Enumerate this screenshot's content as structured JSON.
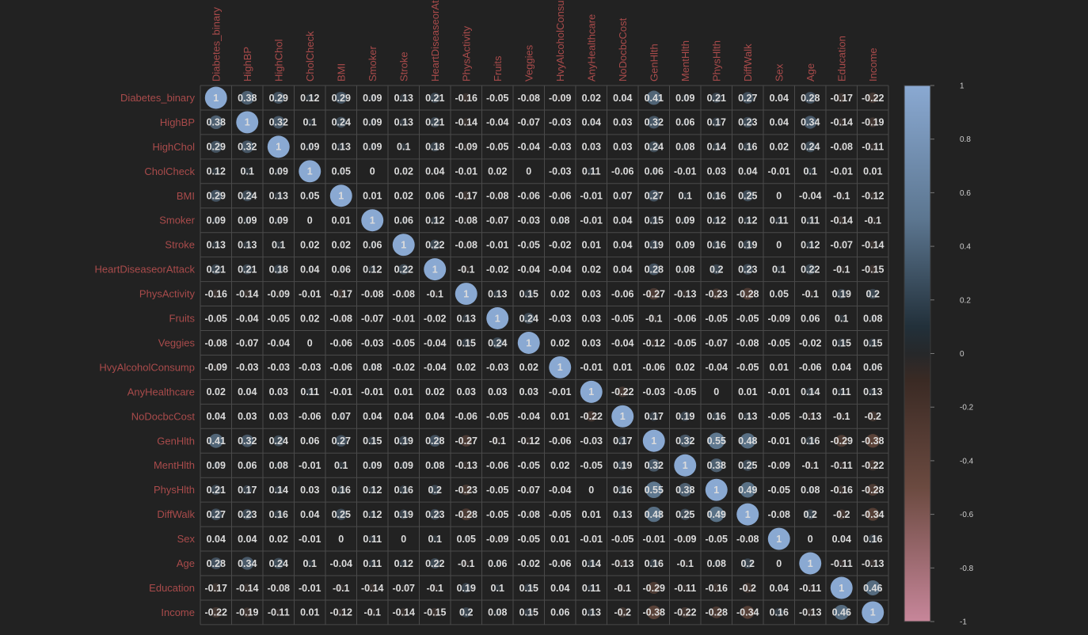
{
  "chart_data": {
    "type": "heatmap",
    "subtype": "correlation-matrix-circles",
    "variables": [
      "Diabetes_binary",
      "HighBP",
      "HighChol",
      "CholCheck",
      "BMI",
      "Smoker",
      "Stroke",
      "HeartDiseaseorAttack",
      "PhysActivity",
      "Fruits",
      "Veggies",
      "HvyAlcoholConsump",
      "AnyHealthcare",
      "NoDocbcCost",
      "GenHlth",
      "MentHlth",
      "PhysHlth",
      "DiffWalk",
      "Sex",
      "Age",
      "Education",
      "Income"
    ],
    "matrix": [
      [
        1,
        0.38,
        0.29,
        0.12,
        0.29,
        0.09,
        0.13,
        0.21,
        -0.16,
        -0.05,
        -0.08,
        -0.09,
        0.02,
        0.04,
        0.41,
        0.09,
        0.21,
        0.27,
        0.04,
        0.28,
        -0.17,
        -0.22
      ],
      [
        0.38,
        1,
        0.32,
        0.1,
        0.24,
        0.09,
        0.13,
        0.21,
        -0.14,
        -0.04,
        -0.07,
        -0.03,
        0.04,
        0.03,
        0.32,
        0.06,
        0.17,
        0.23,
        0.04,
        0.34,
        -0.14,
        -0.19
      ],
      [
        0.29,
        0.32,
        1,
        0.09,
        0.13,
        0.09,
        0.1,
        0.18,
        -0.09,
        -0.05,
        -0.04,
        -0.03,
        0.03,
        0.03,
        0.24,
        0.08,
        0.14,
        0.16,
        0.02,
        0.24,
        -0.08,
        -0.11
      ],
      [
        0.12,
        0.1,
        0.09,
        1,
        0.05,
        0,
        0.02,
        0.04,
        -0.01,
        0.02,
        0,
        -0.03,
        0.11,
        -0.06,
        0.06,
        -0.01,
        0.03,
        0.04,
        -0.01,
        0.1,
        -0.01,
        0.01
      ],
      [
        0.29,
        0.24,
        0.13,
        0.05,
        1,
        0.01,
        0.02,
        0.06,
        -0.17,
        -0.08,
        -0.06,
        -0.06,
        -0.01,
        0.07,
        0.27,
        0.1,
        0.16,
        0.25,
        0,
        -0.04,
        -0.1,
        -0.12
      ],
      [
        0.09,
        0.09,
        0.09,
        0,
        0.01,
        1,
        0.06,
        0.12,
        -0.08,
        -0.07,
        -0.03,
        0.08,
        -0.01,
        0.04,
        0.15,
        0.09,
        0.12,
        0.12,
        0.11,
        0.11,
        -0.14,
        -0.1
      ],
      [
        0.13,
        0.13,
        0.1,
        0.02,
        0.02,
        0.06,
        1,
        0.22,
        -0.08,
        -0.01,
        -0.05,
        -0.02,
        0.01,
        0.04,
        0.19,
        0.09,
        0.16,
        0.19,
        0,
        0.12,
        -0.07,
        -0.14
      ],
      [
        0.21,
        0.21,
        0.18,
        0.04,
        0.06,
        0.12,
        0.22,
        1,
        -0.1,
        -0.02,
        -0.04,
        -0.04,
        0.02,
        0.04,
        0.28,
        0.08,
        0.2,
        0.23,
        0.1,
        0.22,
        -0.1,
        -0.15
      ],
      [
        -0.16,
        -0.14,
        -0.09,
        -0.01,
        -0.17,
        -0.08,
        -0.08,
        -0.1,
        1,
        0.13,
        0.15,
        0.02,
        0.03,
        -0.06,
        -0.27,
        -0.13,
        -0.23,
        -0.28,
        0.05,
        -0.1,
        0.19,
        0.2
      ],
      [
        -0.05,
        -0.04,
        -0.05,
        0.02,
        -0.08,
        -0.07,
        -0.01,
        -0.02,
        0.13,
        1,
        0.24,
        -0.03,
        0.03,
        -0.05,
        -0.1,
        -0.06,
        -0.05,
        -0.05,
        -0.09,
        0.06,
        0.1,
        0.08
      ],
      [
        -0.08,
        -0.07,
        -0.04,
        0,
        -0.06,
        -0.03,
        -0.05,
        -0.04,
        0.15,
        0.24,
        1,
        0.02,
        0.03,
        -0.04,
        -0.12,
        -0.05,
        -0.07,
        -0.08,
        -0.05,
        -0.02,
        0.15,
        0.15
      ],
      [
        -0.09,
        -0.03,
        -0.03,
        -0.03,
        -0.06,
        0.08,
        -0.02,
        -0.04,
        0.02,
        -0.03,
        0.02,
        1,
        -0.01,
        0.01,
        -0.06,
        0.02,
        -0.04,
        -0.05,
        0.01,
        -0.06,
        0.04,
        0.06
      ],
      [
        0.02,
        0.04,
        0.03,
        0.11,
        -0.01,
        -0.01,
        0.01,
        0.02,
        0.03,
        0.03,
        0.03,
        -0.01,
        1,
        -0.22,
        -0.03,
        -0.05,
        0,
        0.01,
        -0.01,
        0.14,
        0.11,
        0.13
      ],
      [
        0.04,
        0.03,
        0.03,
        -0.06,
        0.07,
        0.04,
        0.04,
        0.04,
        -0.06,
        -0.05,
        -0.04,
        0.01,
        -0.22,
        1,
        0.17,
        0.19,
        0.16,
        0.13,
        -0.05,
        -0.13,
        -0.1,
        -0.2
      ],
      [
        0.41,
        0.32,
        0.24,
        0.06,
        0.27,
        0.15,
        0.19,
        0.28,
        -0.27,
        -0.1,
        -0.12,
        -0.06,
        -0.03,
        0.17,
        1,
        0.32,
        0.55,
        0.48,
        -0.01,
        0.16,
        -0.29,
        -0.38
      ],
      [
        0.09,
        0.06,
        0.08,
        -0.01,
        0.1,
        0.09,
        0.09,
        0.08,
        -0.13,
        -0.06,
        -0.05,
        0.02,
        -0.05,
        0.19,
        0.32,
        1,
        0.38,
        0.25,
        -0.09,
        -0.1,
        -0.11,
        -0.22
      ],
      [
        0.21,
        0.17,
        0.14,
        0.03,
        0.16,
        0.12,
        0.16,
        0.2,
        -0.23,
        -0.05,
        -0.07,
        -0.04,
        0,
        0.16,
        0.55,
        0.38,
        1,
        0.49,
        -0.05,
        0.08,
        -0.16,
        -0.28
      ],
      [
        0.27,
        0.23,
        0.16,
        0.04,
        0.25,
        0.12,
        0.19,
        0.23,
        -0.28,
        -0.05,
        -0.08,
        -0.05,
        0.01,
        0.13,
        0.48,
        0.25,
        0.49,
        1,
        -0.08,
        0.2,
        -0.2,
        -0.34
      ],
      [
        0.04,
        0.04,
        0.02,
        -0.01,
        0,
        0.11,
        0,
        0.1,
        0.05,
        -0.09,
        -0.05,
        0.01,
        -0.01,
        -0.05,
        -0.01,
        -0.09,
        -0.05,
        -0.08,
        1,
        0,
        0.04,
        0.16
      ],
      [
        0.28,
        0.34,
        0.24,
        0.1,
        -0.04,
        0.11,
        0.12,
        0.22,
        -0.1,
        0.06,
        -0.02,
        -0.06,
        0.14,
        -0.13,
        0.16,
        -0.1,
        0.08,
        0.2,
        0,
        1,
        -0.11,
        -0.13
      ],
      [
        -0.17,
        -0.14,
        -0.08,
        -0.01,
        -0.1,
        -0.14,
        -0.07,
        -0.1,
        0.19,
        0.1,
        0.15,
        0.04,
        0.11,
        -0.1,
        -0.29,
        -0.11,
        -0.16,
        -0.2,
        0.04,
        -0.11,
        1,
        0.46
      ],
      [
        -0.22,
        -0.19,
        -0.11,
        0.01,
        -0.12,
        -0.1,
        -0.14,
        -0.15,
        0.2,
        0.08,
        0.15,
        0.06,
        0.13,
        -0.2,
        -0.38,
        -0.22,
        -0.28,
        -0.34,
        0.16,
        -0.13,
        0.46,
        1
      ]
    ],
    "colorbar": {
      "range": [
        -1,
        1
      ],
      "ticks": [
        1,
        0.8,
        0.6,
        0.4,
        0.2,
        0,
        -0.2,
        -0.4,
        -0.6,
        -0.8,
        -1
      ],
      "colors": {
        "pos_high": "#8aa9d2",
        "pos_mid": "#5a7288",
        "zero": "#26282a",
        "neg_mid": "#6b4a3c",
        "neg_high": "#c7869a"
      }
    },
    "title": "",
    "xlabel": "",
    "ylabel": "",
    "label_color": "#a94b4b",
    "value_text_color": "#dcdcdc",
    "grid": true,
    "legend": "colorbar-right"
  }
}
